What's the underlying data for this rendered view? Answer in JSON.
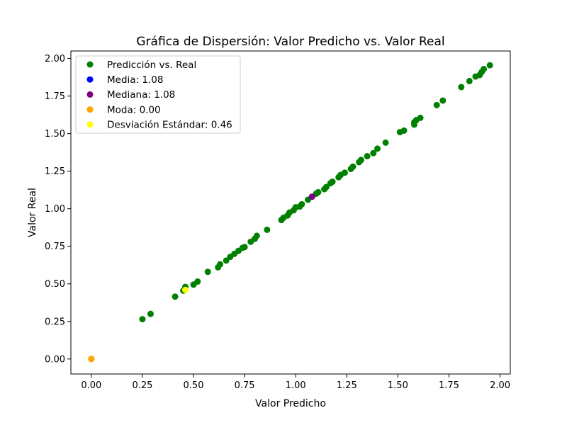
{
  "chart_data": {
    "type": "scatter",
    "title": "Gráfica de Dispersión: Valor Predicho vs. Valor Real",
    "xlabel": "Valor Predicho",
    "ylabel": "Valor Real",
    "xlim": [
      -0.1,
      2.05
    ],
    "ylim": [
      -0.1,
      2.05
    ],
    "xticks": [
      0.0,
      0.25,
      0.5,
      0.75,
      1.0,
      1.25,
      1.5,
      1.75,
      2.0
    ],
    "xtick_labels": [
      "0.00",
      "0.25",
      "0.50",
      "0.75",
      "1.00",
      "1.25",
      "1.50",
      "1.75",
      "2.00"
    ],
    "yticks": [
      0.0,
      0.25,
      0.5,
      0.75,
      1.0,
      1.25,
      1.5,
      1.75,
      2.0
    ],
    "ytick_labels": [
      "0.00",
      "0.25",
      "0.50",
      "0.75",
      "1.00",
      "1.25",
      "1.50",
      "1.75",
      "2.00"
    ],
    "grid": false,
    "legend_position": "upper-left",
    "series": [
      {
        "name": "Predicción vs. Real",
        "color": "#008000",
        "points": [
          [
            0.0,
            0.0
          ],
          [
            0.25,
            0.265
          ],
          [
            0.29,
            0.3
          ],
          [
            0.41,
            0.415
          ],
          [
            0.45,
            0.455
          ],
          [
            0.46,
            0.48
          ],
          [
            0.5,
            0.495
          ],
          [
            0.52,
            0.515
          ],
          [
            0.57,
            0.58
          ],
          [
            0.62,
            0.61
          ],
          [
            0.63,
            0.63
          ],
          [
            0.66,
            0.655
          ],
          [
            0.68,
            0.68
          ],
          [
            0.7,
            0.7
          ],
          [
            0.72,
            0.72
          ],
          [
            0.74,
            0.74
          ],
          [
            0.75,
            0.745
          ],
          [
            0.78,
            0.78
          ],
          [
            0.8,
            0.8
          ],
          [
            0.81,
            0.82
          ],
          [
            0.86,
            0.86
          ],
          [
            0.93,
            0.925
          ],
          [
            0.94,
            0.94
          ],
          [
            0.96,
            0.955
          ],
          [
            0.97,
            0.975
          ],
          [
            0.99,
            0.99
          ],
          [
            1.0,
            1.01
          ],
          [
            1.02,
            1.015
          ],
          [
            1.03,
            1.03
          ],
          [
            1.06,
            1.06
          ],
          [
            1.1,
            1.1
          ],
          [
            1.11,
            1.11
          ],
          [
            1.14,
            1.13
          ],
          [
            1.15,
            1.145
          ],
          [
            1.17,
            1.17
          ],
          [
            1.18,
            1.18
          ],
          [
            1.21,
            1.21
          ],
          [
            1.22,
            1.225
          ],
          [
            1.24,
            1.24
          ],
          [
            1.27,
            1.265
          ],
          [
            1.28,
            1.28
          ],
          [
            1.31,
            1.31
          ],
          [
            1.32,
            1.325
          ],
          [
            1.35,
            1.35
          ],
          [
            1.38,
            1.37
          ],
          [
            1.4,
            1.4
          ],
          [
            1.44,
            1.44
          ],
          [
            1.51,
            1.51
          ],
          [
            1.53,
            1.52
          ],
          [
            1.58,
            1.56
          ],
          [
            1.58,
            1.575
          ],
          [
            1.59,
            1.59
          ],
          [
            1.61,
            1.605
          ],
          [
            1.69,
            1.69
          ],
          [
            1.72,
            1.72
          ],
          [
            1.81,
            1.81
          ],
          [
            1.85,
            1.85
          ],
          [
            1.88,
            1.88
          ],
          [
            1.9,
            1.89
          ],
          [
            1.91,
            1.91
          ],
          [
            1.92,
            1.93
          ],
          [
            1.95,
            1.955
          ]
        ]
      },
      {
        "name": "Media: 1.08",
        "color": "#0000ff",
        "points": [
          [
            1.08,
            1.08
          ]
        ]
      },
      {
        "name": "Mediana: 1.08",
        "color": "#800080",
        "points": [
          [
            1.08,
            1.08
          ]
        ]
      },
      {
        "name": "Moda: 0.00",
        "color": "#ffa500",
        "points": [
          [
            0.0,
            0.0
          ]
        ]
      },
      {
        "name": "Desviación Estándar: 0.46",
        "color": "#ffff00",
        "points": [
          [
            0.46,
            0.46
          ]
        ]
      }
    ]
  }
}
